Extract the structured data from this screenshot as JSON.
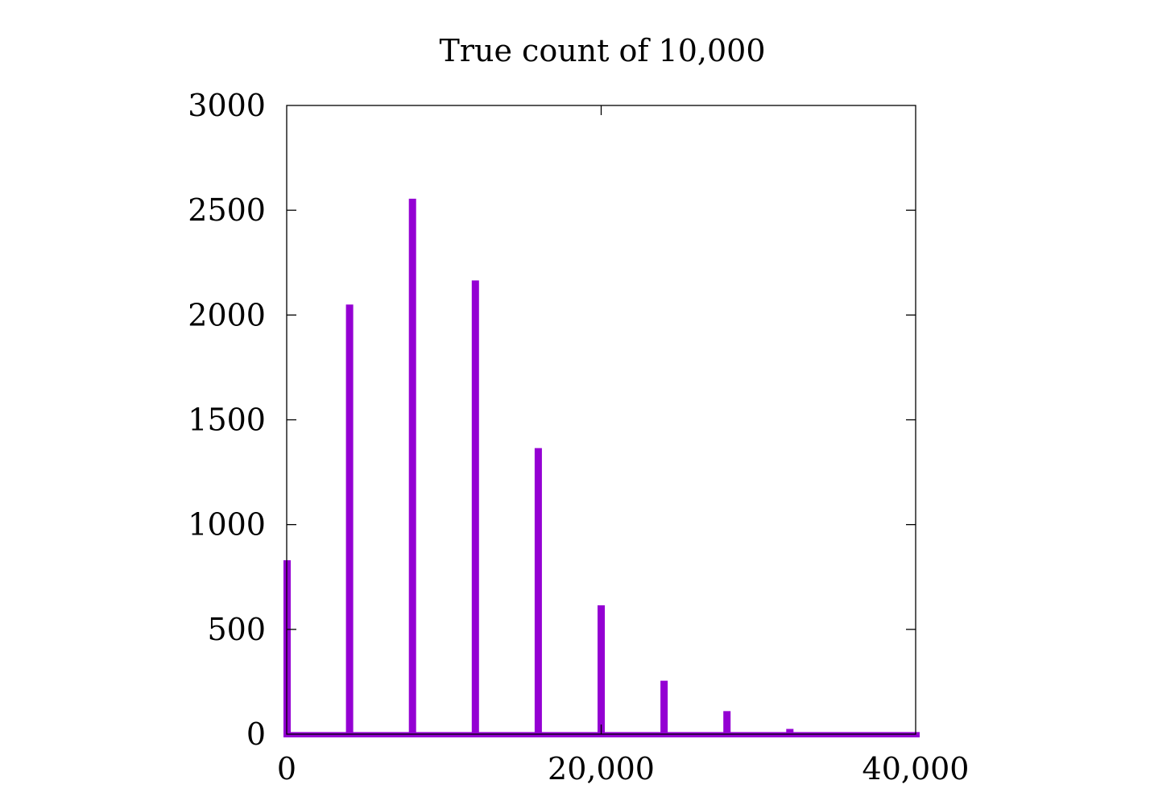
{
  "chart_data": {
    "type": "bar",
    "title": "True count of 10,000",
    "xlabel": "",
    "ylabel": "",
    "xlim": [
      0,
      40000
    ],
    "ylim": [
      0,
      3000
    ],
    "x_ticks": [
      {
        "value": 0,
        "label": "0"
      },
      {
        "value": 20000,
        "label": "20,000"
      },
      {
        "value": 40000,
        "label": "40,000"
      }
    ],
    "y_ticks": [
      {
        "value": 0,
        "label": "0"
      },
      {
        "value": 500,
        "label": "500"
      },
      {
        "value": 1000,
        "label": "1000"
      },
      {
        "value": 1500,
        "label": "1500"
      },
      {
        "value": 2000,
        "label": "2000"
      },
      {
        "value": 2500,
        "label": "2500"
      },
      {
        "value": 3000,
        "label": "3000"
      }
    ],
    "x": [
      0,
      4000,
      8000,
      12000,
      16000,
      20000,
      24000,
      28000,
      32000
    ],
    "values": [
      830,
      2050,
      2555,
      2165,
      1365,
      615,
      255,
      110,
      25
    ],
    "baseline_value": 10,
    "grid": false,
    "legend": "none",
    "bar_color": "#9400d3"
  }
}
